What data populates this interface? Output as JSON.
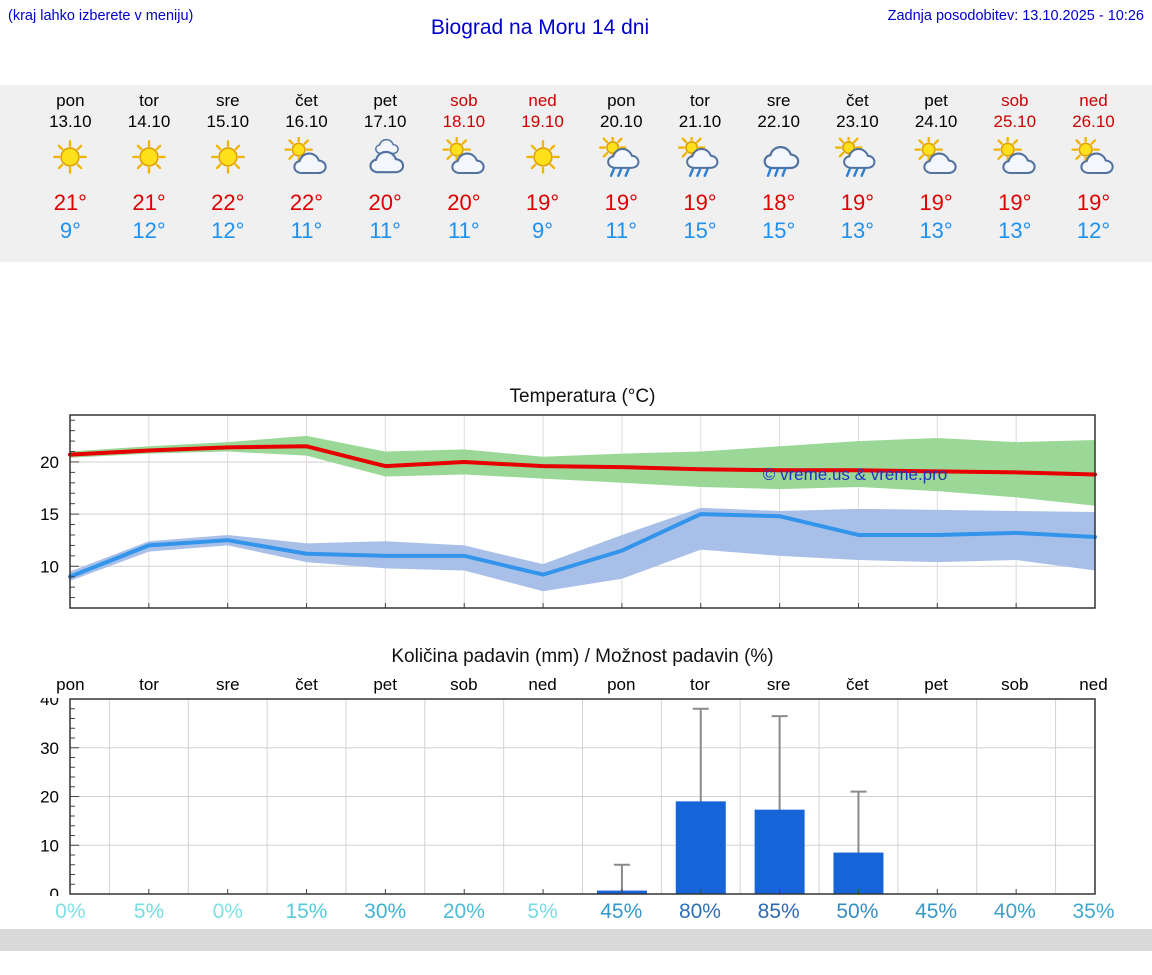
{
  "header": {
    "left_note": "(kraj lahko izberete v meniju)",
    "title": "Biograd na Moru 14 dni",
    "updated": "Zadnja posodobitev: 13.10.2025 - 10:26"
  },
  "colors": {
    "header_text": "#0000cc",
    "weekend_text": "#cc0000",
    "high_temp": "#dd0000",
    "low_temp": "#1e90ee",
    "strip_bg": "#f0f0f0",
    "footer_bg": "#d9d9d9",
    "watermark": "#2233bb"
  },
  "forecast": {
    "days": [
      {
        "name": "pon",
        "date": "13.10",
        "weekend": false,
        "icon": "sun",
        "high": "21°",
        "low": "9°"
      },
      {
        "name": "tor",
        "date": "14.10",
        "weekend": false,
        "icon": "sun",
        "high": "21°",
        "low": "12°"
      },
      {
        "name": "sre",
        "date": "15.10",
        "weekend": false,
        "icon": "sun",
        "high": "22°",
        "low": "12°"
      },
      {
        "name": "čet",
        "date": "16.10",
        "weekend": false,
        "icon": "sun-cloud",
        "high": "22°",
        "low": "11°"
      },
      {
        "name": "pet",
        "date": "17.10",
        "weekend": false,
        "icon": "cloud",
        "high": "20°",
        "low": "11°"
      },
      {
        "name": "sob",
        "date": "18.10",
        "weekend": true,
        "icon": "sun-cloud",
        "high": "20°",
        "low": "11°"
      },
      {
        "name": "ned",
        "date": "19.10",
        "weekend": true,
        "icon": "sun",
        "high": "19°",
        "low": "9°"
      },
      {
        "name": "pon",
        "date": "20.10",
        "weekend": false,
        "icon": "sun-rain",
        "high": "19°",
        "low": "11°"
      },
      {
        "name": "tor",
        "date": "21.10",
        "weekend": false,
        "icon": "sun-rain",
        "high": "19°",
        "low": "15°"
      },
      {
        "name": "sre",
        "date": "22.10",
        "weekend": false,
        "icon": "rain",
        "high": "18°",
        "low": "15°"
      },
      {
        "name": "čet",
        "date": "23.10",
        "weekend": false,
        "icon": "sun-rain",
        "high": "19°",
        "low": "13°"
      },
      {
        "name": "pet",
        "date": "24.10",
        "weekend": false,
        "icon": "sun-cloud",
        "high": "19°",
        "low": "13°"
      },
      {
        "name": "sob",
        "date": "25.10",
        "weekend": true,
        "icon": "sun-cloud",
        "high": "19°",
        "low": "13°"
      },
      {
        "name": "ned",
        "date": "26.10",
        "weekend": true,
        "icon": "sun-cloud",
        "high": "19°",
        "low": "12°"
      }
    ]
  },
  "chart_data": [
    {
      "type": "line",
      "title": "Temperatura (°C)",
      "categories": [
        "13.10",
        "14.10",
        "15.10",
        "16.10",
        "17.10",
        "18.10",
        "19.10",
        "20.10",
        "21.10",
        "22.10",
        "23.10",
        "24.10",
        "25.10",
        "26.10"
      ],
      "series": [
        {
          "name": "max-temp",
          "color": "#e60000",
          "band_color": "#9bd897",
          "values": [
            20.7,
            21.1,
            21.4,
            21.5,
            19.6,
            20.0,
            19.6,
            19.5,
            19.3,
            19.2,
            19.2,
            19.1,
            19.0,
            18.8
          ],
          "band_high": [
            21.0,
            21.5,
            21.9,
            22.5,
            21.0,
            21.2,
            20.5,
            20.8,
            21.0,
            21.5,
            22.0,
            22.3,
            21.9,
            22.1
          ],
          "band_low": [
            20.4,
            20.8,
            21.0,
            20.6,
            18.6,
            18.8,
            18.4,
            18.0,
            17.6,
            17.4,
            17.6,
            17.2,
            16.6,
            15.8
          ]
        },
        {
          "name": "min-temp",
          "color": "#3294ea",
          "band_color": "#a8c0e8",
          "values": [
            9.0,
            12.0,
            12.5,
            11.2,
            11.0,
            11.0,
            9.2,
            11.5,
            15.0,
            14.8,
            13.0,
            13.0,
            13.2,
            12.8
          ],
          "band_high": [
            9.5,
            12.4,
            13.0,
            12.2,
            12.4,
            12.0,
            10.2,
            13.0,
            15.6,
            15.3,
            15.5,
            15.4,
            15.3,
            15.2
          ],
          "band_low": [
            8.6,
            11.4,
            12.0,
            10.4,
            9.8,
            9.6,
            7.6,
            8.8,
            11.6,
            11.0,
            10.6,
            10.4,
            10.6,
            9.6
          ]
        }
      ],
      "ylim": [
        6,
        24.5
      ],
      "yticks": [
        10,
        15,
        20
      ],
      "grid": true,
      "watermark": "© vreme.us & vreme.pro"
    },
    {
      "type": "bar",
      "title": "Količina padavin (mm) / Možnost padavin (%)",
      "categories": [
        "pon",
        "tor",
        "sre",
        "čet",
        "pet",
        "sob",
        "ned",
        "pon",
        "tor",
        "sre",
        "čet",
        "pet",
        "sob",
        "ned"
      ],
      "values": [
        0,
        0,
        0,
        0,
        0,
        0,
        0,
        0.7,
        19,
        17.3,
        8.5,
        0,
        0,
        0
      ],
      "whisker_max": [
        0,
        0,
        0,
        0,
        0,
        0,
        0,
        6,
        38,
        36.5,
        21,
        0,
        0,
        0
      ],
      "percent_labels": [
        "0%",
        "5%",
        "0%",
        "15%",
        "30%",
        "20%",
        "5%",
        "45%",
        "80%",
        "85%",
        "50%",
        "45%",
        "40%",
        "35%"
      ],
      "percent_colors": [
        "#7de2e6",
        "#74dce3",
        "#7de2e6",
        "#58c9db",
        "#41b2d4",
        "#4dbcd8",
        "#74dce3",
        "#3697c9",
        "#2e6fb5",
        "#2d6ab2",
        "#348dc4",
        "#3697c9",
        "#3ba3cd",
        "#3fa9d0"
      ],
      "bar_color": "#1565d8",
      "whisker_color": "#8a8a8a",
      "ylim": [
        0,
        40
      ],
      "yticks": [
        0,
        10,
        20,
        30,
        40
      ],
      "grid": true
    }
  ]
}
